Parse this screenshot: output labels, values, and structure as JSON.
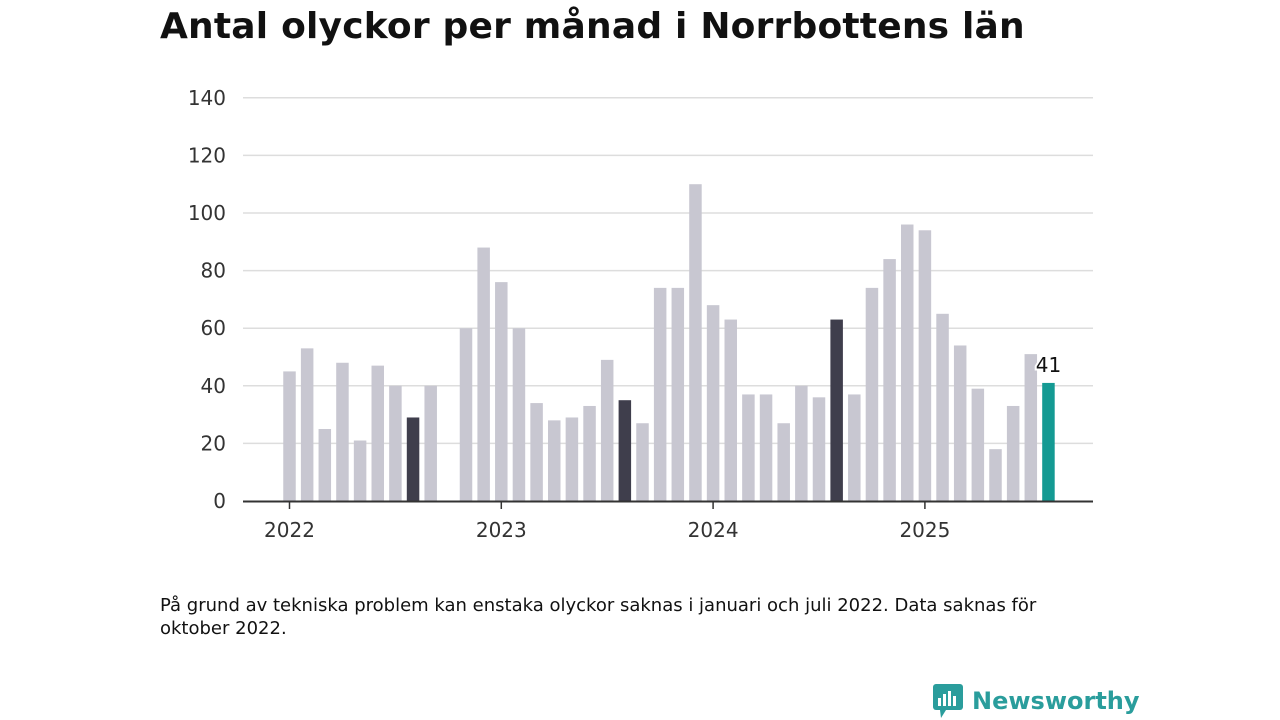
{
  "title": "Antal olyckor per månad i Norrbottens län",
  "footnote": "På grund av tekniska problem kan enstaka olyckor saknas i januari och juli 2022. Data saknas för oktober 2022.",
  "brand": {
    "name": "Newsworthy"
  },
  "colors": {
    "default_bar": "#c8c7d1",
    "highlight_bar": "#3f3e4c",
    "latest_bar": "#149a93",
    "grid": "#dddddd",
    "axis": "#333333"
  },
  "chart_data": {
    "type": "bar",
    "title": "Antal olyckor per månad i Norrbottens län",
    "xlabel": "",
    "ylabel": "",
    "ylim": [
      0,
      140
    ],
    "yticks": [
      0,
      20,
      40,
      60,
      80,
      100,
      120,
      140
    ],
    "xticks": [
      {
        "label": "2022",
        "index": 0
      },
      {
        "label": "2023",
        "index": 12
      },
      {
        "label": "2024",
        "index": 24
      },
      {
        "label": "2025",
        "index": 36
      }
    ],
    "grid": true,
    "data_label": {
      "index": 43,
      "text": "41"
    },
    "categories": [
      "2022-01",
      "2022-02",
      "2022-03",
      "2022-04",
      "2022-05",
      "2022-06",
      "2022-07",
      "2022-08",
      "2022-09",
      "2022-10",
      "2022-11",
      "2022-12",
      "2023-01",
      "2023-02",
      "2023-03",
      "2023-04",
      "2023-05",
      "2023-06",
      "2023-07",
      "2023-08",
      "2023-09",
      "2023-10",
      "2023-11",
      "2023-12",
      "2024-01",
      "2024-02",
      "2024-03",
      "2024-04",
      "2024-05",
      "2024-06",
      "2024-07",
      "2024-08",
      "2024-09",
      "2024-10",
      "2024-11",
      "2024-12",
      "2025-01",
      "2025-02",
      "2025-03",
      "2025-04",
      "2025-05",
      "2025-06",
      "2025-07",
      "2025-08"
    ],
    "values": [
      45,
      53,
      25,
      48,
      21,
      47,
      40,
      29,
      40,
      null,
      60,
      88,
      76,
      60,
      34,
      28,
      29,
      33,
      49,
      35,
      27,
      74,
      74,
      110,
      68,
      63,
      37,
      37,
      27,
      40,
      36,
      63,
      37,
      74,
      84,
      96,
      94,
      65,
      54,
      39,
      18,
      33,
      51,
      41
    ],
    "highlight": [
      "2022-08",
      "2023-08",
      "2024-08"
    ],
    "latest": "2025-08"
  }
}
